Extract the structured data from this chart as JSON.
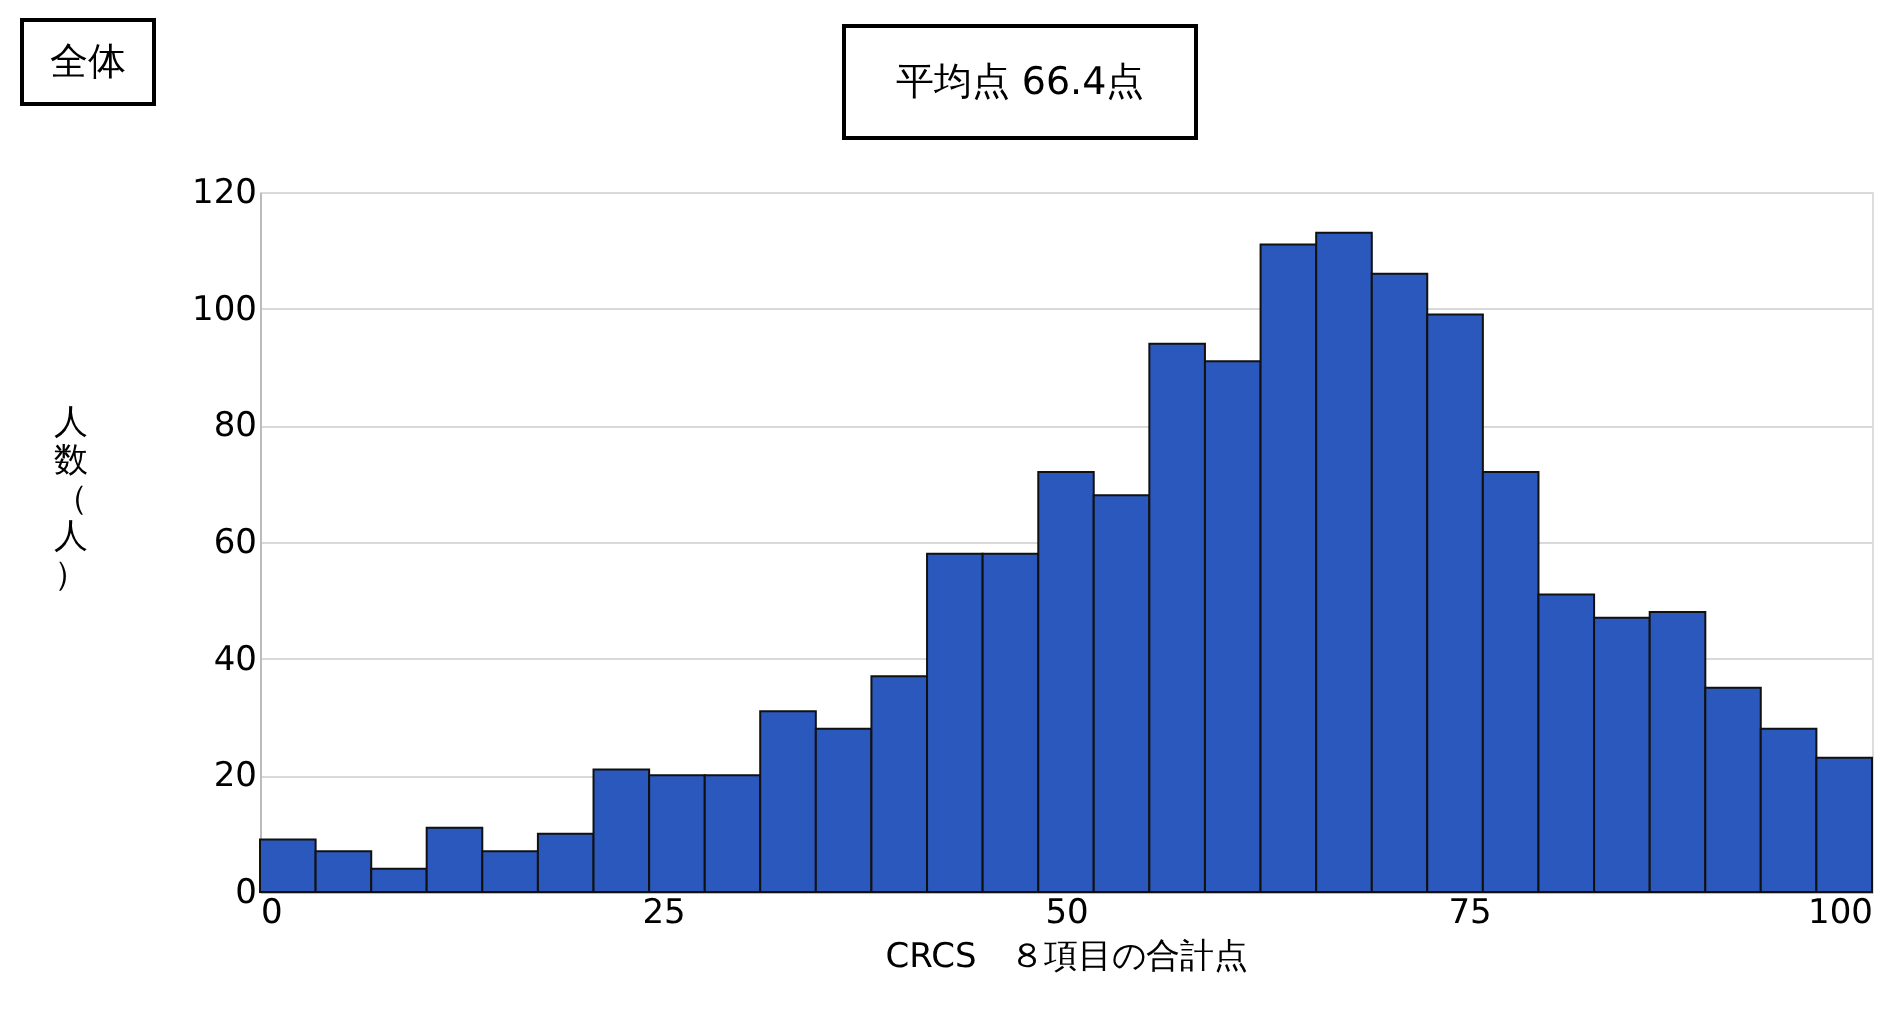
{
  "chart_data": {
    "type": "histogram",
    "title": "全体",
    "annotations": [
      "平均点 66.4点"
    ],
    "xlabel": "CRCS　８項目の合計点",
    "ylabel": "人数（人）",
    "bins": [
      0,
      3.45,
      6.9,
      10.34,
      13.79,
      17.24,
      20.69,
      24.14,
      27.59,
      31.03,
      34.48,
      37.93,
      41.38,
      44.83,
      48.28,
      51.72,
      55.17,
      58.62,
      62.07,
      65.52,
      68.97,
      72.41,
      75.86,
      79.31,
      82.76,
      86.21,
      89.66,
      93.1,
      96.55,
      100
    ],
    "values": [
      9,
      7,
      4,
      11,
      7,
      10,
      21,
      20,
      20,
      31,
      28,
      37,
      58,
      58,
      72,
      68,
      94,
      91,
      111,
      113,
      106,
      99,
      72,
      51,
      47,
      48,
      35,
      28,
      23
    ],
    "color": "#2b58bd",
    "xlim": [
      0,
      100
    ],
    "xticks": [
      0,
      25,
      50,
      75,
      100
    ],
    "ylim": [
      0,
      120
    ],
    "yticks": [
      0,
      20,
      40,
      60,
      80,
      100,
      120
    ],
    "grid": "y"
  }
}
